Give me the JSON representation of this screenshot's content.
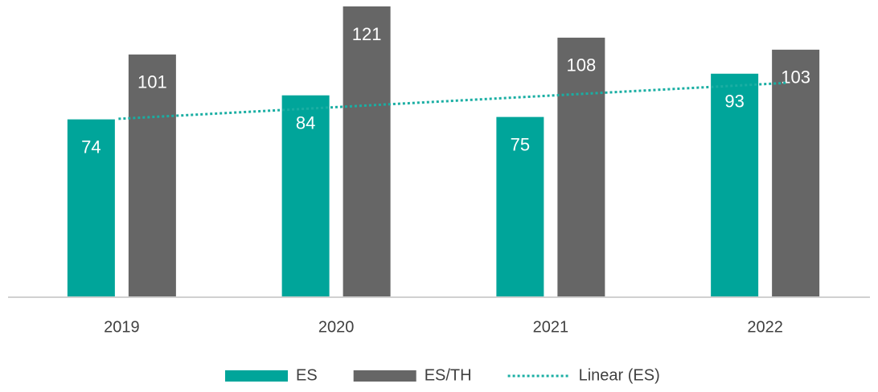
{
  "chart_data": {
    "type": "bar",
    "categories": [
      "2019",
      "2020",
      "2021",
      "2022"
    ],
    "series": [
      {
        "name": "ES",
        "color": "#00a59a",
        "values": [
          74,
          84,
          75,
          93
        ]
      },
      {
        "name": "ES/TH",
        "color": "#666666",
        "values": [
          101,
          121,
          108,
          103
        ]
      }
    ],
    "trendline": {
      "name": "Linear (ES)",
      "series": 0,
      "color": "#1aaea3"
    },
    "ylim": [
      0,
      122
    ],
    "data_labels": true,
    "legend": "bottom"
  }
}
